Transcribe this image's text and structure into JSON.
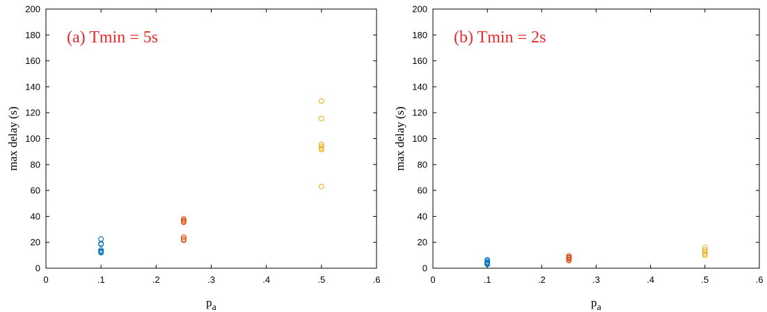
{
  "chart_data": [
    {
      "type": "scatter",
      "title": "(a) Tmin = 5s",
      "title_color": "#E8282B",
      "xlabel": "p",
      "xlabel_sub": "a",
      "ylabel": "max delay (s)",
      "xlim": [
        0,
        0.6
      ],
      "ylim": [
        0,
        200
      ],
      "xticks": [
        0,
        0.1,
        0.2,
        0.3,
        0.4,
        0.5,
        0.6
      ],
      "xtick_labels": [
        "0",
        ".1",
        ".2",
        ".3",
        ".4",
        ".5",
        ".6"
      ],
      "yticks": [
        0,
        20,
        40,
        60,
        80,
        100,
        120,
        140,
        160,
        180,
        200
      ],
      "ytick_labels": [
        "0",
        "20",
        "40",
        "60",
        "80",
        "100",
        "120",
        "140",
        "160",
        "180",
        "200"
      ],
      "grid": false,
      "series": [
        {
          "color": "#0072BD",
          "x": [
            0.1,
            0.1,
            0.1,
            0.1,
            0.1,
            0.1,
            0.1
          ],
          "y": [
            22.5,
            19.0,
            18.5,
            14.0,
            13.0,
            12.5,
            12.0
          ]
        },
        {
          "color": "#D95319",
          "x": [
            0.25,
            0.25,
            0.25,
            0.25,
            0.25,
            0.25,
            0.25
          ],
          "y": [
            38.0,
            37.0,
            36.0,
            35.5,
            24.0,
            22.5,
            21.5
          ]
        },
        {
          "color": "#EDB120",
          "x": [
            0.5,
            0.5,
            0.5,
            0.5,
            0.5,
            0.5,
            0.5
          ],
          "y": [
            129.0,
            115.5,
            95.5,
            94.0,
            92.5,
            91.5,
            63.0
          ]
        }
      ]
    },
    {
      "type": "scatter",
      "title": "(b) Tmin = 2s",
      "title_color": "#E8282B",
      "xlabel": "p",
      "xlabel_sub": "a",
      "ylabel": "max delay (s)",
      "xlim": [
        0,
        0.6
      ],
      "ylim": [
        0,
        200
      ],
      "xticks": [
        0,
        0.1,
        0.2,
        0.3,
        0.4,
        0.5,
        0.6
      ],
      "xtick_labels": [
        "0",
        ".1",
        ".2",
        ".3",
        ".4",
        ".5",
        ".6"
      ],
      "yticks": [
        0,
        20,
        40,
        60,
        80,
        100,
        120,
        140,
        160,
        180,
        200
      ],
      "ytick_labels": [
        "0",
        "20",
        "40",
        "60",
        "80",
        "100",
        "120",
        "140",
        "160",
        "180",
        "200"
      ],
      "grid": false,
      "series": [
        {
          "color": "#0072BD",
          "x": [
            0.1,
            0.1,
            0.1,
            0.1,
            0.1,
            0.1
          ],
          "y": [
            6.5,
            5.5,
            4.5,
            4.0,
            3.5,
            3.0
          ]
        },
        {
          "color": "#D95319",
          "x": [
            0.25,
            0.25,
            0.25,
            0.25,
            0.25,
            0.25
          ],
          "y": [
            9.5,
            8.5,
            8.0,
            7.5,
            6.5,
            6.0
          ]
        },
        {
          "color": "#EDB120",
          "x": [
            0.5,
            0.5,
            0.5,
            0.5,
            0.5
          ],
          "y": [
            16.0,
            14.0,
            12.5,
            11.0,
            10.0
          ]
        }
      ]
    }
  ]
}
